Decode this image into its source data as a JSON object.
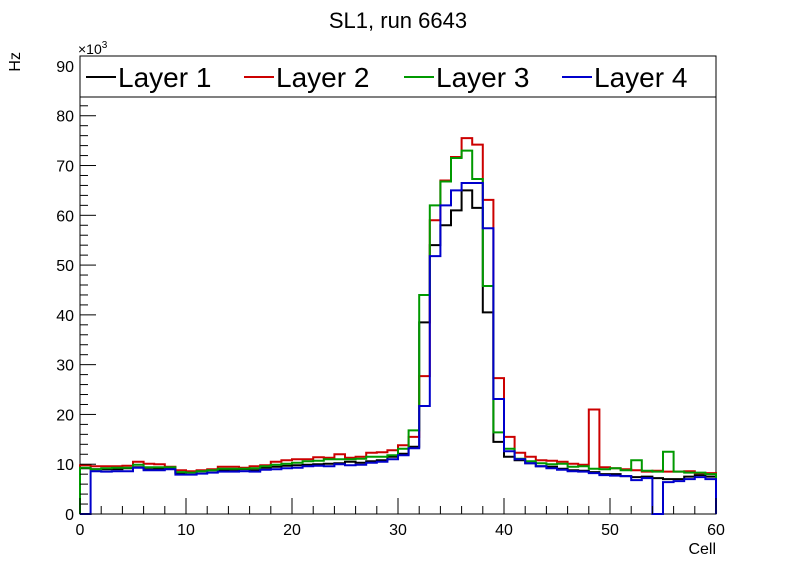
{
  "chart_data": {
    "type": "line",
    "style": "step-histogram",
    "title": "SL1, run 6643",
    "xlabel": "Cell",
    "ylabel": "Hz",
    "y_multiplier_label": "×10",
    "y_multiplier_exponent": "3",
    "xlim": [
      0,
      60
    ],
    "ylim": [
      0,
      92
    ],
    "x_ticks": [
      "0",
      "10",
      "20",
      "30",
      "40",
      "50",
      "60"
    ],
    "y_ticks": [
      "0",
      "10",
      "20",
      "30",
      "40",
      "50",
      "60",
      "70",
      "80",
      "90"
    ],
    "legend_position": "top",
    "grid": false,
    "series": [
      {
        "name": "Layer 1",
        "color": "#000000",
        "values": [
          9.2,
          9.0,
          9.0,
          9.0,
          9.2,
          9.4,
          9.0,
          9.1,
          9.3,
          8.2,
          8.3,
          8.6,
          8.8,
          8.8,
          8.9,
          9.0,
          8.8,
          9.3,
          9.5,
          9.7,
          9.8,
          9.9,
          10.0,
          10.1,
          10.2,
          10.5,
          10.3,
          10.6,
          10.8,
          11.5,
          12.1,
          13.5,
          38.5,
          54.0,
          58.0,
          61.0,
          65.0,
          61.5,
          40.5,
          14.5,
          11.5,
          10.8,
          10.2,
          9.6,
          9.5,
          9.1,
          8.8,
          8.7,
          8.4,
          8.0,
          8.0,
          7.6,
          7.4,
          7.5,
          7.2,
          7.0,
          7.0,
          7.5,
          7.8,
          7.5
        ]
      },
      {
        "name": "Layer 2",
        "color": "#cc0000",
        "values": [
          9.8,
          9.6,
          9.6,
          9.6,
          9.7,
          10.5,
          10.1,
          10.0,
          9.5,
          8.8,
          8.6,
          8.8,
          9.0,
          9.5,
          9.5,
          9.3,
          9.6,
          9.8,
          10.5,
          10.8,
          11.0,
          11.0,
          11.4,
          11.3,
          12.0,
          11.3,
          11.5,
          12.3,
          12.4,
          12.8,
          13.8,
          15.5,
          27.7,
          59.0,
          67.0,
          71.7,
          75.5,
          74.2,
          63.1,
          27.3,
          15.5,
          12.3,
          11.5,
          10.8,
          10.7,
          10.5,
          10.1,
          9.9,
          21.0,
          9.4,
          9.2,
          9.0,
          8.8,
          8.5,
          8.7,
          8.5,
          8.5,
          8.6,
          8.2,
          8.2
        ]
      },
      {
        "name": "Layer 3",
        "color": "#009900",
        "values": [
          9.3,
          9.0,
          9.2,
          9.3,
          9.3,
          9.9,
          9.4,
          9.4,
          9.4,
          8.4,
          8.3,
          8.6,
          8.8,
          9.1,
          9.1,
          9.1,
          9.2,
          9.6,
          9.9,
          10.1,
          10.3,
          10.6,
          10.7,
          11.0,
          11.0,
          11.0,
          11.1,
          11.5,
          11.5,
          11.8,
          13.1,
          16.8,
          44.0,
          62.0,
          66.8,
          71.5,
          73.0,
          67.3,
          45.8,
          16.4,
          13.1,
          11.1,
          10.6,
          10.2,
          10.0,
          10.1,
          9.5,
          9.6,
          9.1,
          9.0,
          9.2,
          8.8,
          10.8,
          8.7,
          8.5,
          12.5,
          8.5,
          8.3,
          8.3,
          8.0
        ]
      },
      {
        "name": "Layer 4",
        "color": "#0000cc",
        "values": [
          0,
          8.6,
          8.5,
          8.6,
          8.6,
          9.3,
          8.8,
          8.8,
          9.0,
          7.9,
          7.9,
          8.1,
          8.3,
          8.5,
          8.5,
          8.6,
          8.5,
          8.9,
          9.0,
          9.2,
          9.3,
          9.6,
          9.7,
          9.6,
          10.0,
          9.8,
          9.9,
          10.3,
          10.5,
          11.0,
          11.8,
          13.2,
          21.7,
          51.8,
          62.0,
          65.0,
          66.5,
          66.5,
          57.4,
          23.1,
          12.6,
          11.0,
          10.2,
          9.6,
          9.2,
          8.9,
          8.6,
          8.5,
          8.2,
          7.8,
          7.7,
          7.6,
          6.8,
          7.2,
          0,
          6.4,
          6.6,
          7.0,
          7.4,
          7.0
        ]
      }
    ]
  }
}
